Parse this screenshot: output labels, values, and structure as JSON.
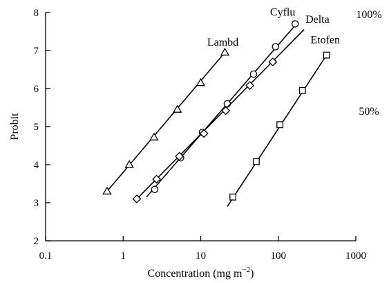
{
  "chart_data": {
    "type": "scatter",
    "title": "",
    "xlabel": "Concentration (mg m",
    "xlabel_sup": "−2",
    "xlabel_close": ")",
    "ylabel": "Probit",
    "x_scale": "log",
    "xlim": [
      0.1,
      1000
    ],
    "ylim": [
      2,
      8
    ],
    "x_ticks": [
      0.1,
      1,
      10,
      100,
      1000
    ],
    "x_tick_labels": [
      "0.1",
      "1",
      "10",
      "100",
      "1000"
    ],
    "y_ticks": [
      2,
      3,
      4,
      5,
      6,
      7,
      8
    ],
    "y_tick_labels": [
      "2",
      "3",
      "4",
      "5",
      "6",
      "7",
      "8"
    ],
    "grid": false,
    "annotations": [
      {
        "text": "100%",
        "y": 7.95
      },
      {
        "text": "50%",
        "y": 5.4
      }
    ],
    "series": [
      {
        "name": "Lambd",
        "marker": "triangle",
        "x": [
          0.62,
          1.2,
          2.5,
          5.0,
          10.0,
          20.5
        ],
        "y": [
          3.3,
          4.0,
          4.72,
          5.45,
          6.15,
          6.95
        ],
        "fit": {
          "x": [
            0.62,
            20.5
          ],
          "y": [
            3.3,
            6.95
          ]
        }
      },
      {
        "name": "Cyflu",
        "marker": "circle",
        "x": [
          2.55,
          5.5,
          10.5,
          22.0,
          48.0,
          92.0,
          165.0
        ],
        "y": [
          3.35,
          4.18,
          4.85,
          5.6,
          6.38,
          7.1,
          7.7
        ],
        "fit": {
          "x": [
            2.0,
            180.0
          ],
          "y": [
            3.15,
            7.75
          ]
        }
      },
      {
        "name": "Delta",
        "marker": "diamond",
        "x": [
          1.5,
          2.7,
          5.3,
          11.0,
          21.0,
          43.0,
          85.0
        ],
        "y": [
          3.1,
          3.62,
          4.22,
          4.82,
          5.42,
          6.08,
          6.7
        ],
        "fit": {
          "x": [
            1.5,
            215.0
          ],
          "y": [
            3.1,
            7.55
          ]
        }
      },
      {
        "name": "Etofen",
        "marker": "square",
        "x": [
          26.0,
          52.0,
          105.0,
          205.0,
          420.0
        ],
        "y": [
          3.15,
          4.08,
          5.05,
          5.95,
          6.88
        ],
        "fit": {
          "x": [
            22.0,
            420.0
          ],
          "y": [
            2.9,
            6.88
          ]
        }
      }
    ]
  }
}
